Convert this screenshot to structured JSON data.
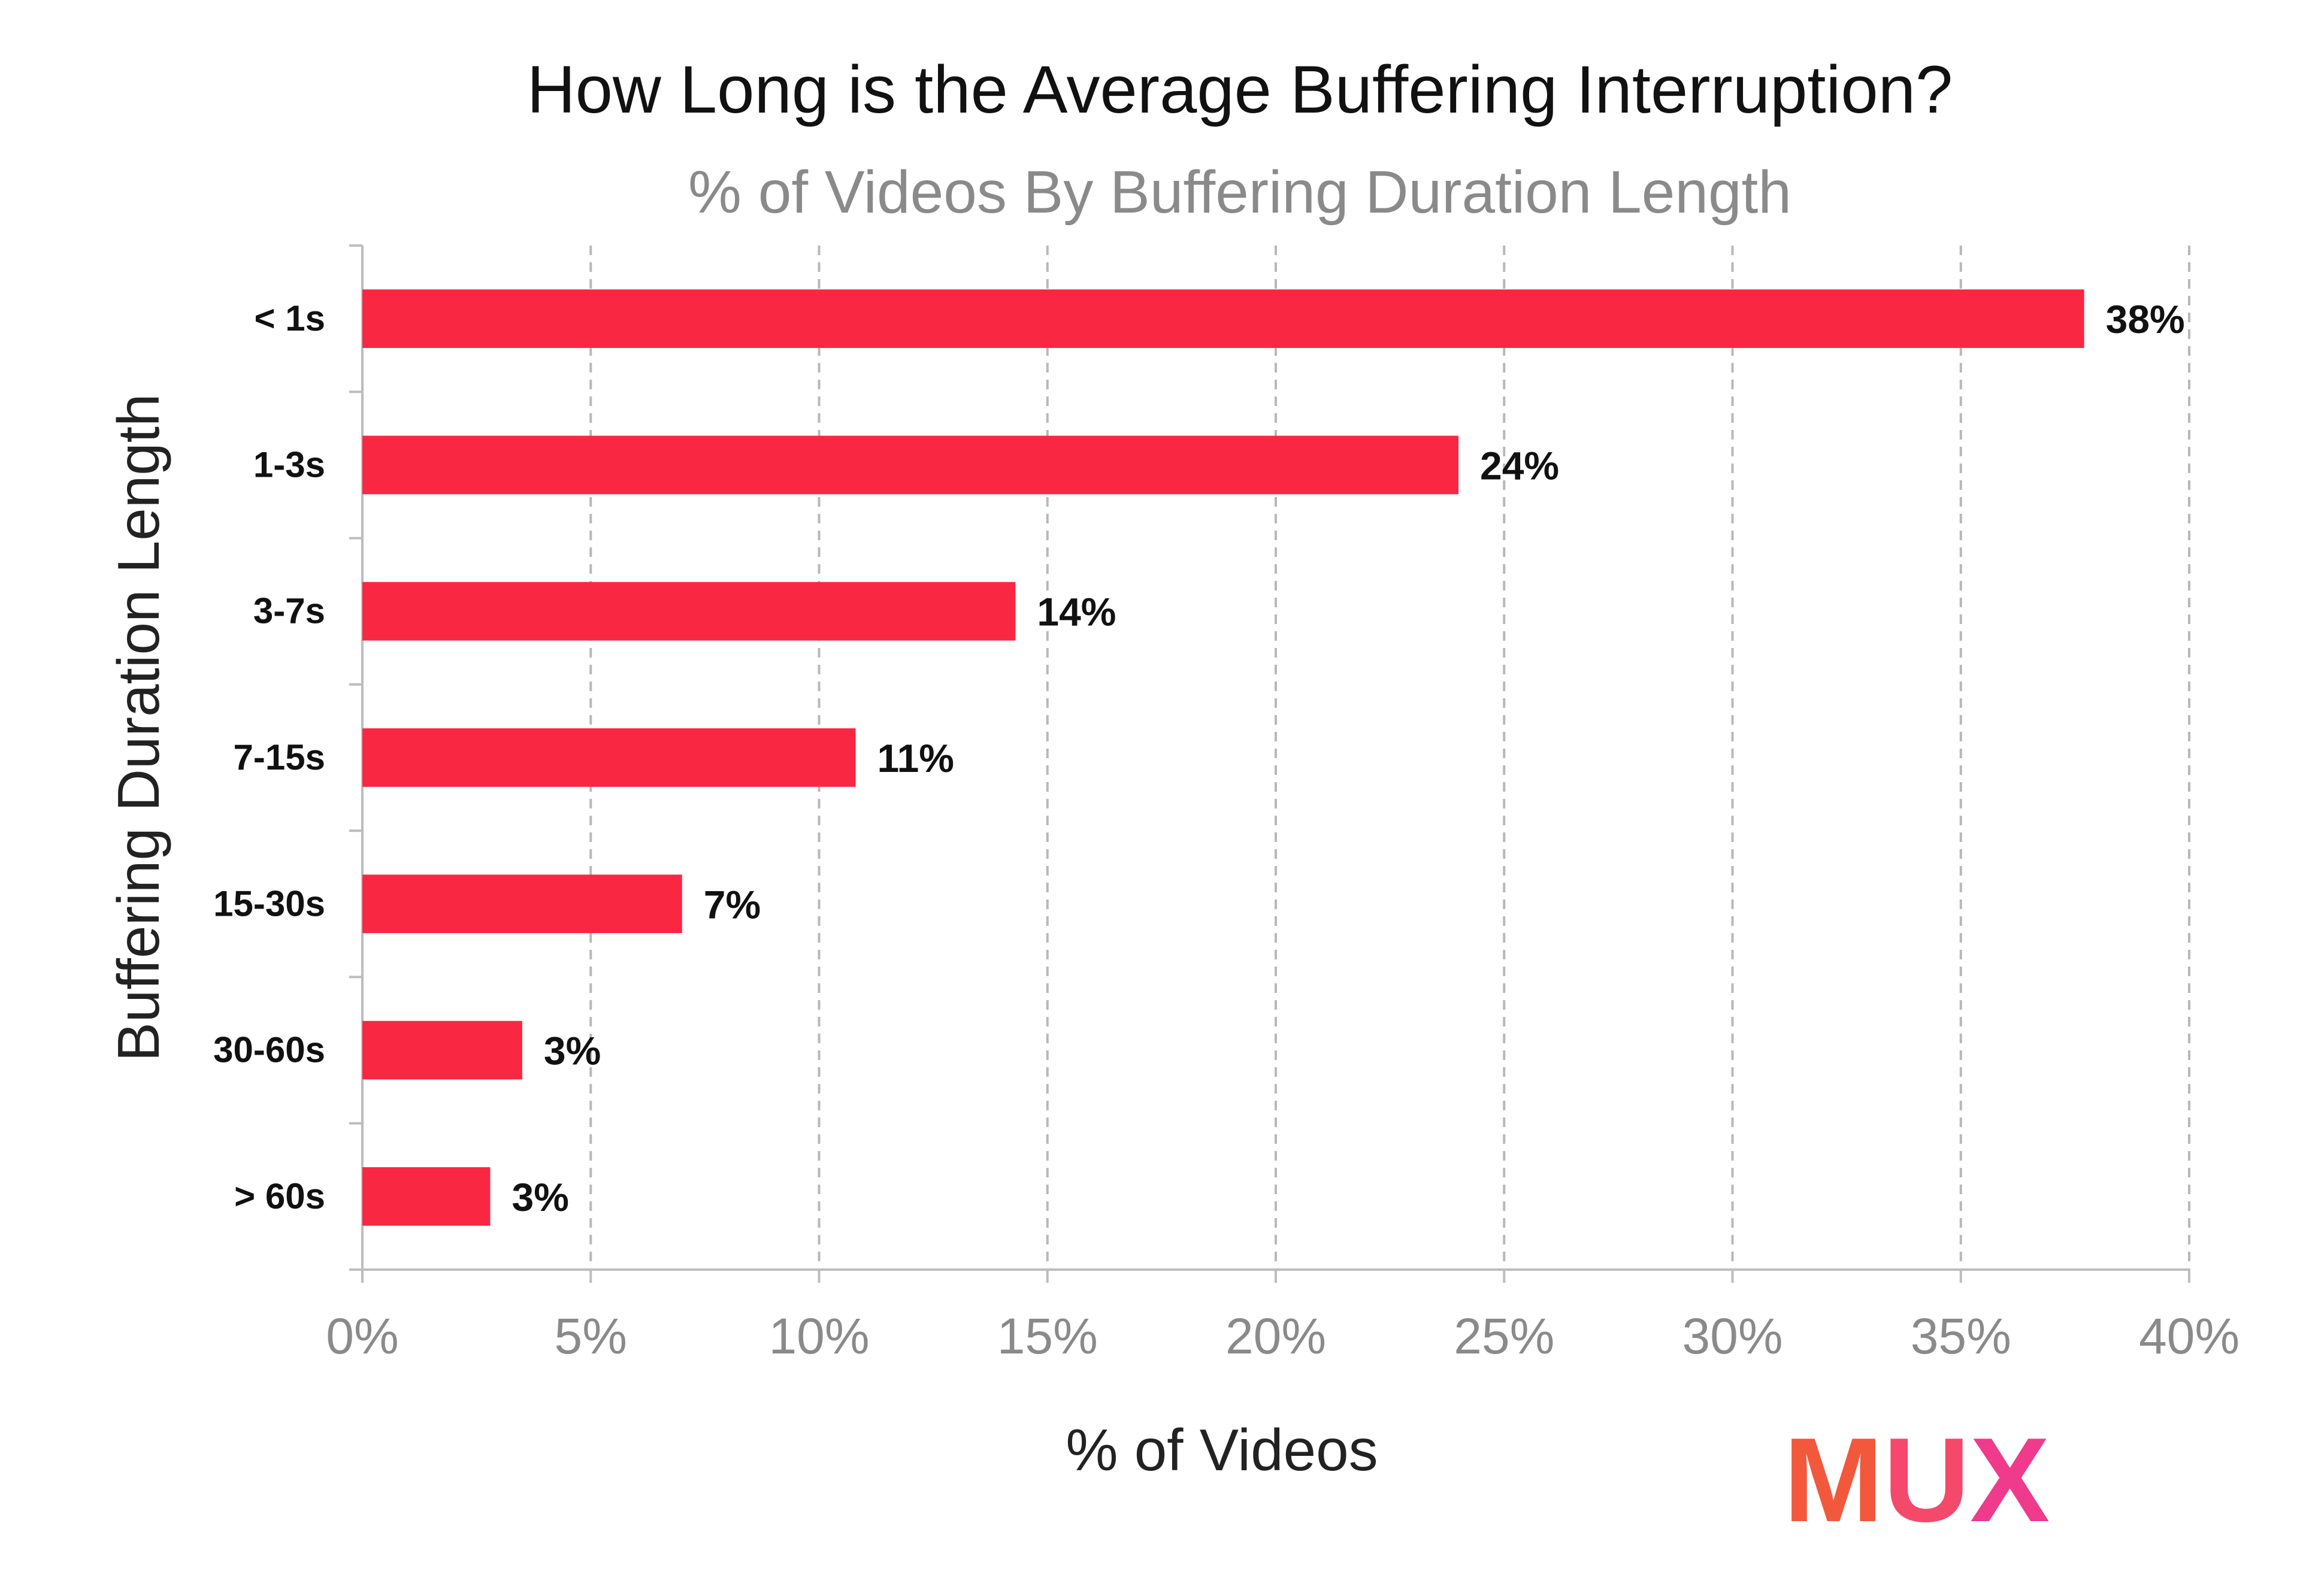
{
  "chart_data": {
    "type": "bar",
    "orientation": "horizontal",
    "title": "How Long is the Average Buffering Interruption?",
    "subtitle": "% of Videos By Buffering Duration Length",
    "xlabel": "% of Videos",
    "ylabel": "Buffering Duration Length",
    "categories": [
      "< 1s",
      "1-3s",
      "3-7s",
      "7-15s",
      "15-30s",
      "30-60s",
      "> 60s"
    ],
    "values": [
      37.7,
      24.0,
      14.3,
      10.8,
      7.0,
      3.5,
      2.8
    ],
    "value_labels": [
      "38%",
      "24%",
      "14%",
      "11%",
      "7%",
      "3%",
      "3%"
    ],
    "xlim": [
      0,
      40
    ],
    "xticks": [
      0,
      5,
      10,
      15,
      20,
      25,
      30,
      35,
      40
    ],
    "xtick_labels": [
      "0%",
      "5%",
      "10%",
      "15%",
      "20%",
      "25%",
      "30%",
      "35%",
      "40%"
    ],
    "grid": "vertical dashed",
    "legend": "none",
    "bar_color": "#fa2743"
  },
  "logo": {
    "text": "MUX",
    "colors": [
      "#f2583b",
      "#f4496a",
      "#f03a8c"
    ]
  }
}
